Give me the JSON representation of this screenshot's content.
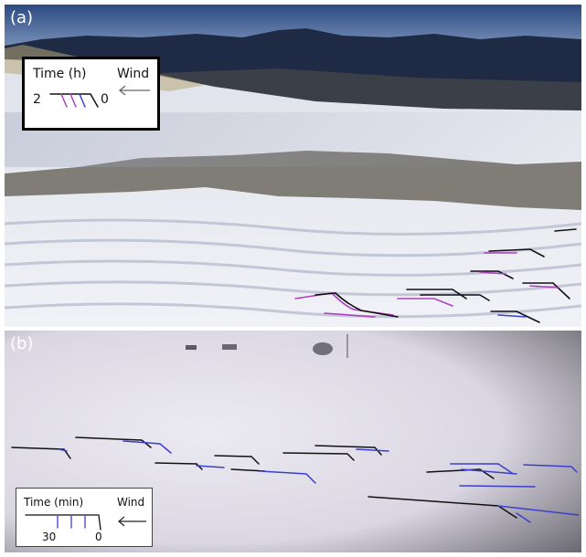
{
  "panel_a": {
    "label": "(a)",
    "legend": {
      "title": "Time (h)",
      "wind_label": "Wind",
      "start_value": "2",
      "end_value": "0"
    }
  },
  "panel_b": {
    "label": "(b)",
    "legend": {
      "title": "Time (min)",
      "wind_label": "Wind",
      "tick_30": "30",
      "tick_0": "0"
    }
  },
  "colors": {
    "trace_black": "#111111",
    "trace_magenta": "#b03fc0",
    "trace_blue": "#3b3fd0",
    "sky_top": "#2f4f86",
    "snow": "#e9eaf2"
  }
}
